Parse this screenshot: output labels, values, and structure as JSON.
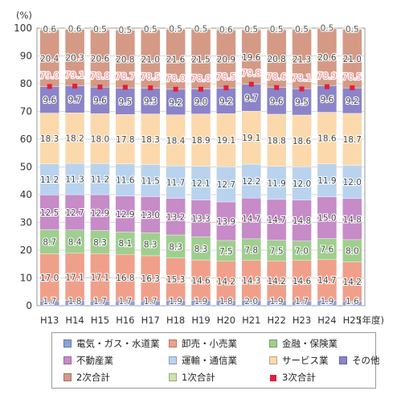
{
  "chart_data": {
    "type": "bar",
    "stacked": true,
    "percent_unit": "(%)",
    "year_unit": "(年度)",
    "categories": [
      "H13",
      "H14",
      "H15",
      "H16",
      "H17",
      "H18",
      "H19",
      "H20",
      "H21",
      "H22",
      "H23",
      "H24",
      "H25"
    ],
    "ylim": [
      0,
      100
    ],
    "yticks": [
      0,
      10,
      20,
      30,
      40,
      50,
      60,
      70,
      80,
      90,
      100
    ],
    "grid": true,
    "legend_position": "bottom",
    "series": [
      {
        "name": "2次合計",
        "group": "secondary",
        "color": "#d49a86",
        "labelColor": "#ffffff",
        "values": [
          20.4,
          20.3,
          20.6,
          20.8,
          21.0,
          21.6,
          21.5,
          20.9,
          19.6,
          20.8,
          21.3,
          20.6,
          21.0
        ]
      },
      {
        "name": "1次合計",
        "group": "primary",
        "color": "#cce3ad",
        "labelColor": "#ffffff",
        "values": [
          0.6,
          0.6,
          0.5,
          0.5,
          0.5,
          0.5,
          0.5,
          0.6,
          0.5,
          0.5,
          0.5,
          0.5,
          0.5
        ]
      },
      {
        "name": "電気・ガス・水道業",
        "color": "#8aa2d6",
        "labelColor": "#ffffff",
        "values": [
          1.7,
          1.8,
          1.7,
          1.7,
          1.7,
          1.9,
          1.9,
          1.8,
          2.0,
          1.9,
          1.7,
          1.9,
          1.6
        ]
      },
      {
        "name": "卸売・小売業",
        "color": "#f0a08a",
        "labelColor": "#ffffff",
        "values": [
          17.0,
          17.1,
          17.1,
          16.8,
          16.3,
          15.3,
          14.6,
          14.2,
          14.3,
          14.2,
          14.6,
          14.7,
          14.2
        ]
      },
      {
        "name": "金融・保険業",
        "color": "#9fcf8f",
        "labelColor": "#ffffff",
        "values": [
          8.7,
          8.4,
          8.3,
          8.1,
          8.3,
          8.3,
          8.3,
          7.5,
          7.8,
          7.5,
          7.0,
          7.6,
          8.0
        ]
      },
      {
        "name": "不動産業",
        "color": "#c78bc8",
        "labelColor": "#ffffff",
        "values": [
          12.5,
          12.7,
          12.9,
          12.9,
          13.0,
          13.2,
          13.3,
          13.9,
          14.7,
          14.7,
          14.8,
          15.0,
          14.8
        ]
      },
      {
        "name": "運輸・通信業",
        "color": "#b9d3ee",
        "labelColor": "#ffffff",
        "values": [
          11.2,
          11.3,
          11.2,
          11.6,
          11.5,
          11.7,
          12.1,
          12.7,
          12.2,
          11.9,
          12.0,
          11.9,
          12.0
        ]
      },
      {
        "name": "サービス業",
        "color": "#fbd9ad",
        "labelColor": "#ffffff",
        "values": [
          18.3,
          18.2,
          18.0,
          17.8,
          18.3,
          18.4,
          18.9,
          19.1,
          19.1,
          18.8,
          18.6,
          18.6,
          18.7
        ]
      },
      {
        "name": "その他",
        "color": "#8b84c9",
        "labelColor": "#ffffff",
        "values": [
          9.6,
          9.7,
          9.6,
          9.5,
          9.3,
          9.2,
          9.0,
          9.2,
          9.7,
          9.6,
          9.5,
          9.6,
          9.2
        ]
      }
    ],
    "tertiary_total": {
      "name": "3次合計",
      "color": "#e0203a",
      "labelColor": "#f28b98",
      "values": [
        79.0,
        79.1,
        78.8,
        78.7,
        78.5,
        78.0,
        78.0,
        78.5,
        79.8,
        78.6,
        78.1,
        78.9,
        78.5
      ]
    },
    "stack_order": [
      "電気・ガス・水道業",
      "卸売・小売業",
      "金融・保険業",
      "不動産業",
      "運輸・通信業",
      "サービス業",
      "その他",
      "2次合計",
      "1次合計"
    ],
    "legend_rows": [
      [
        "電気・ガス・水道業",
        "卸売・小売業",
        "金融・保険業"
      ],
      [
        "不動産業",
        "運輸・通信業",
        "サービス業",
        "その他"
      ],
      [
        "2次合計",
        "1次合計",
        "3次合計"
      ]
    ]
  }
}
